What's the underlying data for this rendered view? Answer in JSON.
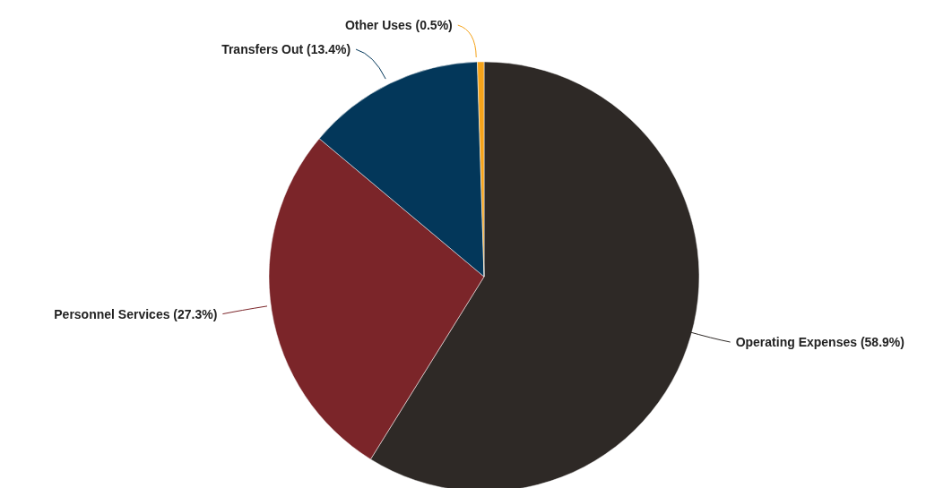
{
  "chart_data": {
    "type": "pie",
    "categories": [
      "Operating Expenses (58.9%)",
      "Personnel Services (27.3%)",
      "Transfers Out (13.4%)",
      "Other Uses (0.5%)"
    ],
    "values": [
      58.9,
      27.3,
      13.4,
      0.5
    ],
    "colors": [
      "#2e2926",
      "#7b2529",
      "#03375a",
      "#f5a31a"
    ],
    "legend": false
  }
}
